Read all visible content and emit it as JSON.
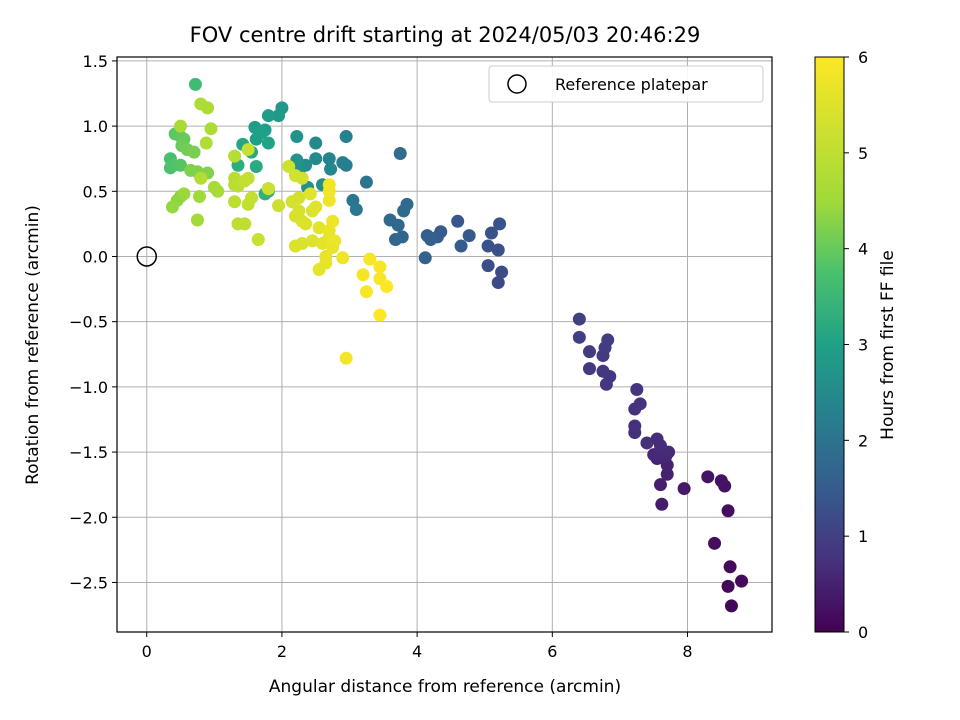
{
  "chart_data": {
    "type": "scatter",
    "title": "FOV centre drift starting at 2024/05/03 20:46:29",
    "xlabel": "Angular distance from reference (arcmin)",
    "ylabel": "Rotation from reference (arcmin)",
    "xlim": [
      -0.44,
      9.25
    ],
    "ylim": [
      -2.88,
      1.53
    ],
    "xticks": [
      0,
      2,
      4,
      6,
      8
    ],
    "xtick_labels": [
      "0",
      "2",
      "4",
      "6",
      "8"
    ],
    "yticks": [
      -2.5,
      -2.0,
      -1.5,
      -1.0,
      -0.5,
      0.0,
      0.5,
      1.0,
      1.5
    ],
    "ytick_labels": [
      "−2.5",
      "−2.0",
      "−1.5",
      "−1.0",
      "−0.5",
      "0.0",
      "0.5",
      "1.0",
      "1.5"
    ],
    "grid": true,
    "legend": {
      "position": "top-right",
      "entries": [
        "Reference platepar"
      ]
    },
    "reference_point": {
      "label": "Reference platepar",
      "x": 0,
      "y": 0
    },
    "colorbar": {
      "label": "Hours from first FF file",
      "range": [
        0,
        6
      ],
      "ticks": [
        0,
        1,
        2,
        3,
        4,
        5,
        6
      ],
      "tick_labels": [
        "0",
        "1",
        "2",
        "3",
        "4",
        "5",
        "6"
      ],
      "colormap": "viridis"
    },
    "series": [
      {
        "values_format": "[x, y, hours]",
        "points": [
          [
            8.65,
            -2.68,
            0.1
          ],
          [
            8.6,
            -2.53,
            0.1
          ],
          [
            8.8,
            -2.49,
            0.12
          ],
          [
            8.63,
            -2.38,
            0.15
          ],
          [
            8.4,
            -2.2,
            0.2
          ],
          [
            8.6,
            -1.95,
            0.22
          ],
          [
            8.55,
            -1.76,
            0.25
          ],
          [
            8.5,
            -1.72,
            0.27
          ],
          [
            8.3,
            -1.69,
            0.3
          ],
          [
            7.95,
            -1.78,
            0.35
          ],
          [
            7.62,
            -1.9,
            0.4
          ],
          [
            7.6,
            -1.75,
            0.45
          ],
          [
            7.7,
            -1.67,
            0.5
          ],
          [
            7.7,
            -1.6,
            0.52
          ],
          [
            7.55,
            -1.55,
            0.55
          ],
          [
            7.68,
            -1.53,
            0.58
          ],
          [
            7.5,
            -1.52,
            0.6
          ],
          [
            7.6,
            -1.5,
            0.62
          ],
          [
            7.72,
            -1.5,
            0.64
          ],
          [
            7.6,
            -1.45,
            0.66
          ],
          [
            7.55,
            -1.4,
            0.68
          ],
          [
            7.4,
            -1.43,
            0.7
          ],
          [
            7.22,
            -1.35,
            0.72
          ],
          [
            7.22,
            -1.3,
            0.74
          ],
          [
            7.22,
            -1.17,
            0.76
          ],
          [
            7.3,
            -1.13,
            0.78
          ],
          [
            7.25,
            -1.02,
            0.8
          ],
          [
            6.8,
            -0.98,
            0.82
          ],
          [
            6.85,
            -0.92,
            0.84
          ],
          [
            6.75,
            -0.88,
            0.86
          ],
          [
            6.55,
            -0.86,
            0.88
          ],
          [
            6.75,
            -0.76,
            0.9
          ],
          [
            6.55,
            -0.73,
            0.92
          ],
          [
            6.78,
            -0.7,
            0.94
          ],
          [
            6.82,
            -0.64,
            0.96
          ],
          [
            6.4,
            -0.62,
            0.98
          ],
          [
            6.4,
            -0.48,
            1.0
          ],
          [
            5.2,
            -0.2,
            1.2
          ],
          [
            5.25,
            -0.12,
            1.22
          ],
          [
            5.05,
            -0.07,
            1.25
          ],
          [
            5.2,
            0.05,
            1.28
          ],
          [
            5.05,
            0.08,
            1.3
          ],
          [
            5.1,
            0.18,
            1.32
          ],
          [
            5.22,
            0.25,
            1.35
          ],
          [
            4.6,
            0.27,
            1.4
          ],
          [
            4.77,
            0.16,
            1.45
          ],
          [
            4.65,
            0.08,
            1.48
          ],
          [
            4.35,
            0.19,
            1.5
          ],
          [
            4.3,
            0.15,
            1.52
          ],
          [
            4.15,
            0.16,
            1.55
          ],
          [
            4.2,
            0.13,
            1.58
          ],
          [
            4.12,
            -0.01,
            1.6
          ],
          [
            3.78,
            0.15,
            1.7
          ],
          [
            3.68,
            0.13,
            1.72
          ],
          [
            3.72,
            0.24,
            1.75
          ],
          [
            3.6,
            0.28,
            1.78
          ],
          [
            3.8,
            0.35,
            1.8
          ],
          [
            3.85,
            0.4,
            1.82
          ],
          [
            3.75,
            0.79,
            1.85
          ],
          [
            3.25,
            0.57,
            2.0
          ],
          [
            3.05,
            0.43,
            2.05
          ],
          [
            3.1,
            0.36,
            2.1
          ],
          [
            2.95,
            0.7,
            2.2
          ],
          [
            2.9,
            0.72,
            2.25
          ],
          [
            2.95,
            0.92,
            2.3
          ],
          [
            2.7,
            0.75,
            2.35
          ],
          [
            2.72,
            0.67,
            2.4
          ],
          [
            2.5,
            0.87,
            2.45
          ],
          [
            2.5,
            0.75,
            2.5
          ],
          [
            2.35,
            0.7,
            2.55
          ],
          [
            2.6,
            0.55,
            2.6
          ],
          [
            2.38,
            0.53,
            2.62
          ],
          [
            2.25,
            0.65,
            2.65
          ],
          [
            2.22,
            0.92,
            2.7
          ],
          [
            2.22,
            0.74,
            2.72
          ],
          [
            2.0,
            1.14,
            2.8
          ],
          [
            1.95,
            1.08,
            2.85
          ],
          [
            1.8,
            1.08,
            2.88
          ],
          [
            1.75,
            0.97,
            2.9
          ],
          [
            1.6,
            0.99,
            2.92
          ],
          [
            1.62,
            0.9,
            2.95
          ],
          [
            1.7,
            0.95,
            3.0
          ],
          [
            1.8,
            0.87,
            3.05
          ],
          [
            1.42,
            0.86,
            3.1
          ],
          [
            1.55,
            0.8,
            3.15
          ],
          [
            1.62,
            0.69,
            3.2
          ],
          [
            1.35,
            0.7,
            3.25
          ],
          [
            1.8,
            0.5,
            3.3
          ],
          [
            1.75,
            0.48,
            3.35
          ],
          [
            1.8,
            0.52,
            3.4
          ],
          [
            0.72,
            1.32,
            3.6
          ],
          [
            0.35,
            0.75,
            3.7
          ],
          [
            0.35,
            0.68,
            3.75
          ],
          [
            0.4,
            0.7,
            3.8
          ],
          [
            0.5,
            0.7,
            3.85
          ],
          [
            0.42,
            0.94,
            3.9
          ],
          [
            0.5,
            0.92,
            3.95
          ],
          [
            0.55,
            0.9,
            4.0
          ],
          [
            0.52,
            0.85,
            4.05
          ],
          [
            0.6,
            0.82,
            4.1
          ],
          [
            0.7,
            0.8,
            4.15
          ],
          [
            0.65,
            0.66,
            4.2
          ],
          [
            0.75,
            0.65,
            4.22
          ],
          [
            0.9,
            0.64,
            4.25
          ],
          [
            0.5,
            0.46,
            4.3
          ],
          [
            0.45,
            0.43,
            4.35
          ],
          [
            0.38,
            0.38,
            4.4
          ],
          [
            0.55,
            0.48,
            4.45
          ],
          [
            0.78,
            0.46,
            4.5
          ],
          [
            0.75,
            0.28,
            4.55
          ],
          [
            1.0,
            0.53,
            4.6
          ],
          [
            1.05,
            0.5,
            4.62
          ],
          [
            0.5,
            1.0,
            4.65
          ],
          [
            0.8,
            1.17,
            4.68
          ],
          [
            0.9,
            1.14,
            4.7
          ],
          [
            0.95,
            0.98,
            4.72
          ],
          [
            0.88,
            0.87,
            4.75
          ],
          [
            0.8,
            0.6,
            4.8
          ],
          [
            1.3,
            0.77,
            4.85
          ],
          [
            1.3,
            0.55,
            4.88
          ],
          [
            1.3,
            0.6,
            4.9
          ],
          [
            1.35,
            0.54,
            4.92
          ],
          [
            1.3,
            0.42,
            4.95
          ],
          [
            1.35,
            0.25,
            4.98
          ],
          [
            1.45,
            0.25,
            5.0
          ],
          [
            1.5,
            0.4,
            5.02
          ],
          [
            1.55,
            0.45,
            5.05
          ],
          [
            1.5,
            0.6,
            5.08
          ],
          [
            1.45,
            0.58,
            5.1
          ],
          [
            1.5,
            0.82,
            5.12
          ],
          [
            1.65,
            0.13,
            5.15
          ],
          [
            1.8,
            0.52,
            5.2
          ],
          [
            1.95,
            0.39,
            5.22
          ],
          [
            2.1,
            0.69,
            5.25
          ],
          [
            2.2,
            0.62,
            5.28
          ],
          [
            2.3,
            0.6,
            5.3
          ],
          [
            2.25,
            0.45,
            5.32
          ],
          [
            2.15,
            0.42,
            5.34
          ],
          [
            2.25,
            0.35,
            5.36
          ],
          [
            2.3,
            0.27,
            5.38
          ],
          [
            2.2,
            0.31,
            5.4
          ],
          [
            2.3,
            0.1,
            5.42
          ],
          [
            2.2,
            0.08,
            5.44
          ],
          [
            2.35,
            0.25,
            5.46
          ],
          [
            2.45,
            0.12,
            5.48
          ],
          [
            2.45,
            0.35,
            5.5
          ],
          [
            2.5,
            0.38,
            5.52
          ],
          [
            2.42,
            0.48,
            5.54
          ],
          [
            2.55,
            0.22,
            5.56
          ],
          [
            2.6,
            0.1,
            5.58
          ],
          [
            2.55,
            -0.1,
            5.6
          ],
          [
            2.65,
            -0.05,
            5.62
          ],
          [
            2.65,
            0.0,
            5.64
          ],
          [
            2.75,
            0.07,
            5.66
          ],
          [
            2.7,
            0.15,
            5.68
          ],
          [
            2.7,
            0.2,
            5.7
          ],
          [
            2.75,
            0.27,
            5.72
          ],
          [
            2.78,
            0.12,
            5.74
          ],
          [
            2.9,
            -0.01,
            5.76
          ],
          [
            2.7,
            0.43,
            5.78
          ],
          [
            2.7,
            0.5,
            5.8
          ],
          [
            2.7,
            0.55,
            5.82
          ],
          [
            2.95,
            -0.78,
            5.84
          ],
          [
            3.2,
            -0.14,
            5.86
          ],
          [
            3.25,
            -0.27,
            5.88
          ],
          [
            3.3,
            -0.02,
            5.9
          ],
          [
            3.45,
            -0.08,
            5.92
          ],
          [
            3.45,
            -0.17,
            5.94
          ],
          [
            3.55,
            -0.23,
            5.96
          ],
          [
            3.45,
            -0.45,
            6.0
          ]
        ]
      }
    ]
  }
}
